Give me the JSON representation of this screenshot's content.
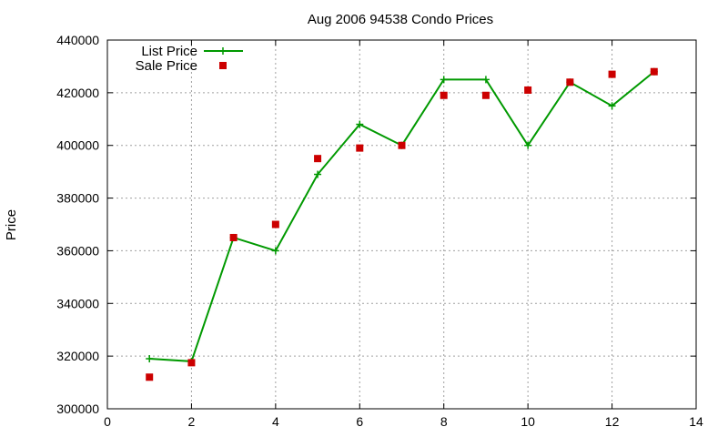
{
  "chart_data": {
    "type": "line",
    "title": "Aug 2006 94538 Condo Prices",
    "xlabel": "",
    "ylabel": "Price",
    "xlim": [
      0,
      14
    ],
    "ylim": [
      300000,
      440000
    ],
    "x_ticks": [
      0,
      2,
      4,
      6,
      8,
      10,
      12,
      14
    ],
    "y_ticks": [
      300000,
      320000,
      340000,
      360000,
      380000,
      400000,
      420000,
      440000
    ],
    "grid": true,
    "legend_position": "top-left",
    "series": [
      {
        "name": "List Price",
        "style": "line-with-plus-markers",
        "color": "#009900",
        "x": [
          1,
          2,
          3,
          4,
          5,
          6,
          7,
          8,
          9,
          10,
          11,
          12,
          13
        ],
        "y": [
          319000,
          318000,
          365000,
          360000,
          389000,
          408000,
          400000,
          425000,
          425000,
          400000,
          424000,
          415000,
          428000
        ]
      },
      {
        "name": "Sale Price",
        "style": "square-markers",
        "color": "#cc0000",
        "x": [
          1,
          2,
          3,
          4,
          5,
          6,
          7,
          8,
          9,
          10,
          11,
          12,
          13
        ],
        "y": [
          312000,
          317500,
          365000,
          370000,
          395000,
          399000,
          400000,
          419000,
          419000,
          421000,
          424000,
          427000,
          428000
        ]
      }
    ]
  }
}
